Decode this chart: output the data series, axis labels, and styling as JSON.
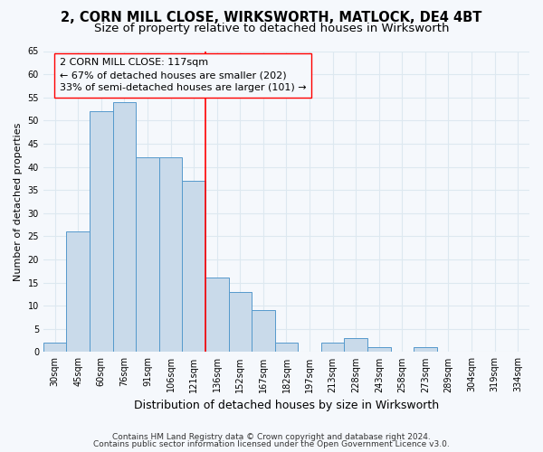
{
  "title1": "2, CORN MILL CLOSE, WIRKSWORTH, MATLOCK, DE4 4BT",
  "title2": "Size of property relative to detached houses in Wirksworth",
  "xlabel": "Distribution of detached houses by size in Wirksworth",
  "ylabel": "Number of detached properties",
  "bar_color": "#c9daea",
  "bar_edge_color": "#5599cc",
  "categories": [
    "30sqm",
    "45sqm",
    "60sqm",
    "76sqm",
    "91sqm",
    "106sqm",
    "121sqm",
    "136sqm",
    "152sqm",
    "167sqm",
    "182sqm",
    "197sqm",
    "213sqm",
    "228sqm",
    "243sqm",
    "258sqm",
    "273sqm",
    "289sqm",
    "304sqm",
    "319sqm",
    "334sqm"
  ],
  "values": [
    2,
    26,
    52,
    54,
    42,
    42,
    37,
    16,
    13,
    9,
    2,
    0,
    2,
    3,
    1,
    0,
    1,
    0,
    0,
    0,
    0
  ],
  "ylim": [
    0,
    65
  ],
  "yticks": [
    0,
    5,
    10,
    15,
    20,
    25,
    30,
    35,
    40,
    45,
    50,
    55,
    60,
    65
  ],
  "red_line_x": 6.5,
  "annotation_text": "2 CORN MILL CLOSE: 117sqm\n← 67% of detached houses are smaller (202)\n33% of semi-detached houses are larger (101) →",
  "footnote1": "Contains HM Land Registry data © Crown copyright and database right 2024.",
  "footnote2": "Contains public sector information licensed under the Open Government Licence v3.0.",
  "bg_color": "#f5f8fc",
  "grid_color": "#dde8f0",
  "title1_fontsize": 10.5,
  "title2_fontsize": 9.5,
  "axis_fontsize": 8,
  "tick_fontsize": 7,
  "annot_fontsize": 8,
  "xlabel_fontsize": 9,
  "ylabel_fontsize": 8,
  "footnote_fontsize": 6.5
}
